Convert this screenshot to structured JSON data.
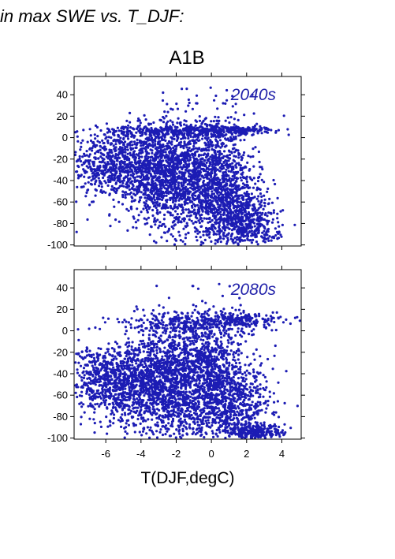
{
  "heading": "in max SWE vs. T_DJF:",
  "scenario": "A1B",
  "xlabel": "T(DJF,degC)",
  "chart_data": [
    {
      "type": "scatter",
      "period_label": "2040s",
      "xlim": [
        -7.8,
        5.1
      ],
      "ylim": [
        -101,
        57
      ],
      "xticks": [
        -6,
        -4,
        -2,
        0,
        2,
        4
      ],
      "yticks": [
        40,
        20,
        0,
        -20,
        -40,
        -60,
        -80,
        -100
      ],
      "x_tick_labels_shown": false,
      "color": "#1c1cb4",
      "clusters": [
        {
          "cx": -5.8,
          "cy": -25,
          "sx": 1.2,
          "sy": 15,
          "n": 500
        },
        {
          "cx": -3.5,
          "cy": -30,
          "sx": 1.1,
          "sy": 22,
          "n": 800
        },
        {
          "cx": -1.5,
          "cy": -35,
          "sx": 1.1,
          "sy": 28,
          "n": 1000
        },
        {
          "cx": 0.5,
          "cy": -45,
          "sx": 1.0,
          "sy": 30,
          "n": 900
        },
        {
          "cx": 1.7,
          "cy": -72,
          "sx": 0.9,
          "sy": 18,
          "n": 400
        },
        {
          "cx": 2.3,
          "cy": -85,
          "sx": 0.8,
          "sy": 10,
          "n": 180
        },
        {
          "cx": -2.0,
          "cy": 6,
          "sx": 2.5,
          "sy": 2.5,
          "n": 300
        },
        {
          "cx": 1.2,
          "cy": 7,
          "sx": 1.3,
          "sy": 1.5,
          "n": 150
        }
      ]
    },
    {
      "type": "scatter",
      "period_label": "2080s",
      "xlim": [
        -7.8,
        5.1
      ],
      "ylim": [
        -101,
        57
      ],
      "xticks": [
        -6,
        -4,
        -2,
        0,
        2,
        4
      ],
      "yticks": [
        40,
        20,
        0,
        -20,
        -40,
        -60,
        -80,
        -100
      ],
      "x_tick_labels_shown": true,
      "xtick_labels": [
        "-6",
        "-4",
        "-2",
        "0",
        "2",
        "4"
      ],
      "color": "#1c1cb4",
      "clusters": [
        {
          "cx": -6.2,
          "cy": -45,
          "sx": 1.0,
          "sy": 15,
          "n": 500
        },
        {
          "cx": -4.0,
          "cy": -50,
          "sx": 1.1,
          "sy": 22,
          "n": 800
        },
        {
          "cx": -2.0,
          "cy": -45,
          "sx": 1.1,
          "sy": 28,
          "n": 1000
        },
        {
          "cx": 0.0,
          "cy": -45,
          "sx": 1.0,
          "sy": 30,
          "n": 900
        },
        {
          "cx": 1.5,
          "cy": -70,
          "sx": 1.0,
          "sy": 22,
          "n": 500
        },
        {
          "cx": 2.5,
          "cy": -95,
          "sx": 0.8,
          "sy": 4,
          "n": 250
        },
        {
          "cx": -1.0,
          "cy": 8,
          "sx": 2.0,
          "sy": 5,
          "n": 250
        },
        {
          "cx": 1.5,
          "cy": 10,
          "sx": 1.2,
          "sy": 4,
          "n": 150
        }
      ]
    }
  ]
}
